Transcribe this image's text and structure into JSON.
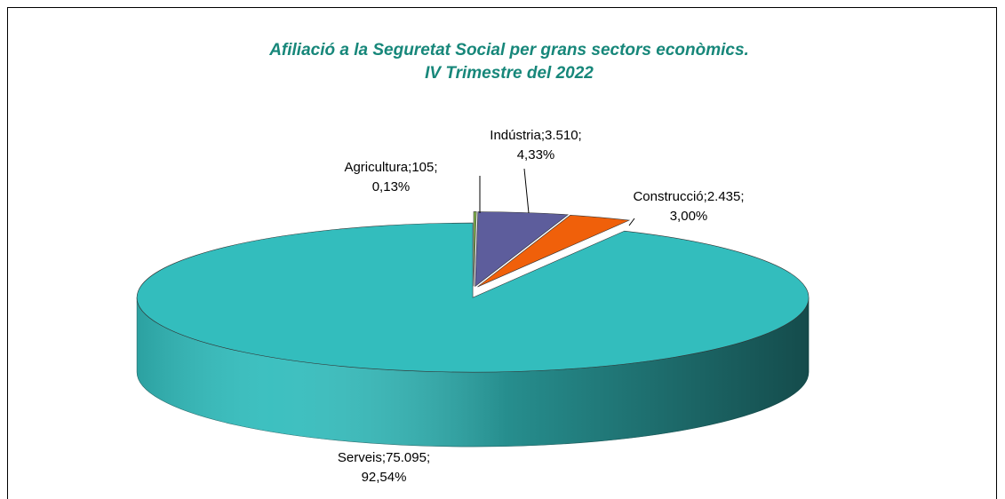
{
  "chart_data": {
    "type": "pie",
    "title": [
      "Afiliació a la Seguretat Social per grans sectors econòmics.",
      "IV Trimestre del 2022"
    ],
    "categories": [
      "Agricultura",
      "Indústria",
      "Construcció",
      "Serveis"
    ],
    "values": [
      105,
      3510,
      2435,
      75095
    ],
    "value_labels": [
      "105",
      "3.510",
      "2.435",
      "75.095"
    ],
    "percentages": [
      0.13,
      4.33,
      3.0,
      92.54
    ],
    "percentage_labels": [
      "0,13%",
      "4,33%",
      "3,00%",
      "92,54%"
    ],
    "label_separator": "; ",
    "colors": [
      "#7fb24a",
      "#5d5d9c",
      "#f0600a",
      "#33bdbd"
    ]
  }
}
